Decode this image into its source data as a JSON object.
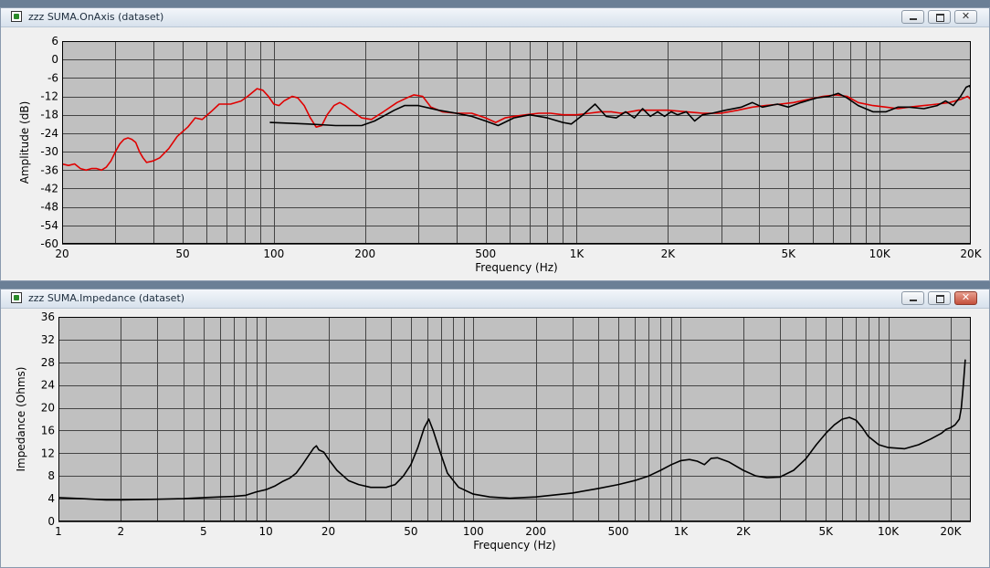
{
  "windows": [
    {
      "title": "zzz SUMA.OnAxis (dataset)",
      "buttons": {
        "minimize": "minimize",
        "maximize": "maximize",
        "close": "close"
      }
    },
    {
      "title": "zzz SUMA.Impedance (dataset)",
      "buttons": {
        "minimize": "minimize",
        "maximize": "maximize",
        "close": "close"
      }
    }
  ],
  "chart_data": [
    {
      "type": "line",
      "xlabel": "Frequency (Hz)",
      "ylabel": "Amplitude (dB)",
      "xscale": "log",
      "xlim": [
        20,
        20000
      ],
      "ylim": [
        -60,
        6
      ],
      "yticks": [
        6,
        0,
        -6,
        -12,
        -18,
        -24,
        -30,
        -36,
        -42,
        -48,
        -54,
        -60
      ],
      "xticks": [
        {
          "v": 20,
          "label": "20"
        },
        {
          "v": 50,
          "label": "50"
        },
        {
          "v": 100,
          "label": "100"
        },
        {
          "v": 200,
          "label": "200"
        },
        {
          "v": 500,
          "label": "500"
        },
        {
          "v": 1000,
          "label": "1K"
        },
        {
          "v": 2000,
          "label": "2K"
        },
        {
          "v": 5000,
          "label": "5K"
        },
        {
          "v": 10000,
          "label": "10K"
        },
        {
          "v": 20000,
          "label": "20K"
        }
      ],
      "grid": true,
      "colors": {
        "black": "#000000",
        "red": "#e00000"
      },
      "series": [
        {
          "color": "red",
          "points": [
            [
              20,
              -34
            ],
            [
              21,
              -34.5
            ],
            [
              22,
              -34
            ],
            [
              23,
              -35.5
            ],
            [
              24,
              -36
            ],
            [
              25,
              -35.5
            ],
            [
              26,
              -35.5
            ],
            [
              27,
              -36
            ],
            [
              28,
              -35
            ],
            [
              29,
              -33
            ],
            [
              30,
              -30
            ],
            [
              31,
              -27.5
            ],
            [
              32,
              -26
            ],
            [
              33,
              -25.5
            ],
            [
              34,
              -26
            ],
            [
              35,
              -27
            ],
            [
              36,
              -30
            ],
            [
              37,
              -32
            ],
            [
              38,
              -33.5
            ],
            [
              40,
              -33
            ],
            [
              42,
              -32
            ],
            [
              45,
              -29
            ],
            [
              48,
              -25
            ],
            [
              52,
              -22
            ],
            [
              55,
              -19
            ],
            [
              58,
              -19.5
            ],
            [
              62,
              -17
            ],
            [
              66,
              -14.5
            ],
            [
              72,
              -14.5
            ],
            [
              78,
              -13.5
            ],
            [
              82,
              -12
            ],
            [
              88,
              -9.5
            ],
            [
              92,
              -10
            ],
            [
              96,
              -12
            ],
            [
              100,
              -14.5
            ],
            [
              104,
              -15
            ],
            [
              108,
              -13.5
            ],
            [
              115,
              -12
            ],
            [
              120,
              -12.5
            ],
            [
              126,
              -15
            ],
            [
              132,
              -19
            ],
            [
              138,
              -22
            ],
            [
              144,
              -21.5
            ],
            [
              150,
              -18
            ],
            [
              158,
              -15
            ],
            [
              165,
              -14
            ],
            [
              172,
              -15
            ],
            [
              180,
              -16.5
            ],
            [
              195,
              -19
            ],
            [
              210,
              -19.5
            ],
            [
              230,
              -17
            ],
            [
              255,
              -14
            ],
            [
              275,
              -12.5
            ],
            [
              290,
              -11.5
            ],
            [
              310,
              -12
            ],
            [
              330,
              -15.5
            ],
            [
              360,
              -17
            ],
            [
              400,
              -17.5
            ],
            [
              450,
              -17.5
            ],
            [
              500,
              -19
            ],
            [
              540,
              -20.5
            ],
            [
              580,
              -19
            ],
            [
              620,
              -18.5
            ],
            [
              680,
              -18
            ],
            [
              750,
              -17.5
            ],
            [
              820,
              -17.5
            ],
            [
              900,
              -18
            ],
            [
              1000,
              -18
            ],
            [
              1100,
              -17.5
            ],
            [
              1200,
              -17
            ],
            [
              1300,
              -17
            ],
            [
              1400,
              -17.5
            ],
            [
              1500,
              -17
            ],
            [
              1600,
              -16.5
            ],
            [
              1800,
              -16.5
            ],
            [
              2000,
              -16.5
            ],
            [
              2300,
              -17
            ],
            [
              2600,
              -17.5
            ],
            [
              3000,
              -17.5
            ],
            [
              3400,
              -16.5
            ],
            [
              3800,
              -15.5
            ],
            [
              4200,
              -15
            ],
            [
              4700,
              -14.5
            ],
            [
              5200,
              -14
            ],
            [
              5800,
              -13
            ],
            [
              6500,
              -12
            ],
            [
              7200,
              -11.5
            ],
            [
              7800,
              -12
            ],
            [
              8500,
              -14
            ],
            [
              9500,
              -15
            ],
            [
              10500,
              -15.5
            ],
            [
              11500,
              -16
            ],
            [
              12500,
              -15.5
            ],
            [
              14000,
              -15
            ],
            [
              15500,
              -14.5
            ],
            [
              17000,
              -14
            ],
            [
              18500,
              -13
            ],
            [
              19500,
              -12
            ],
            [
              20500,
              -14
            ]
          ]
        },
        {
          "color": "black",
          "points": [
            [
              97,
              -20.5
            ],
            [
              130,
              -21
            ],
            [
              160,
              -21.5
            ],
            [
              195,
              -21.5
            ],
            [
              215,
              -20
            ],
            [
              250,
              -16.5
            ],
            [
              270,
              -15
            ],
            [
              300,
              -15
            ],
            [
              350,
              -16.5
            ],
            [
              400,
              -17.5
            ],
            [
              450,
              -18.5
            ],
            [
              500,
              -20
            ],
            [
              550,
              -21.5
            ],
            [
              620,
              -19
            ],
            [
              700,
              -18
            ],
            [
              800,
              -19
            ],
            [
              900,
              -20.5
            ],
            [
              960,
              -21
            ],
            [
              1050,
              -18
            ],
            [
              1150,
              -14.5
            ],
            [
              1250,
              -18.5
            ],
            [
              1350,
              -19
            ],
            [
              1450,
              -17
            ],
            [
              1550,
              -19
            ],
            [
              1650,
              -16
            ],
            [
              1750,
              -18.5
            ],
            [
              1850,
              -17
            ],
            [
              1950,
              -18.5
            ],
            [
              2050,
              -17
            ],
            [
              2150,
              -18
            ],
            [
              2300,
              -17
            ],
            [
              2450,
              -20
            ],
            [
              2600,
              -18
            ],
            [
              2800,
              -17.5
            ],
            [
              3100,
              -16.5
            ],
            [
              3500,
              -15.5
            ],
            [
              3800,
              -14
            ],
            [
              4100,
              -15.5
            ],
            [
              4600,
              -14.5
            ],
            [
              5000,
              -15.5
            ],
            [
              5500,
              -14
            ],
            [
              6200,
              -12.5
            ],
            [
              6800,
              -12
            ],
            [
              7300,
              -11
            ],
            [
              7800,
              -12.5
            ],
            [
              8500,
              -15
            ],
            [
              9500,
              -17
            ],
            [
              10500,
              -17
            ],
            [
              11500,
              -15.5
            ],
            [
              12500,
              -15.5
            ],
            [
              14000,
              -16
            ],
            [
              15500,
              -15
            ],
            [
              16500,
              -13.5
            ],
            [
              17500,
              -15
            ],
            [
              18500,
              -12
            ],
            [
              19300,
              -9
            ],
            [
              19800,
              -8.5
            ],
            [
              20300,
              -11
            ],
            [
              20700,
              -14
            ]
          ]
        }
      ]
    },
    {
      "type": "line",
      "xlabel": "Frequency (Hz)",
      "ylabel": "Impedance (Ohms)",
      "xscale": "log",
      "xlim": [
        1,
        25000
      ],
      "ylim": [
        0,
        36
      ],
      "yticks": [
        36,
        32,
        28,
        24,
        20,
        16,
        12,
        8,
        4,
        0
      ],
      "xticks": [
        {
          "v": 1,
          "label": "1"
        },
        {
          "v": 2,
          "label": "2"
        },
        {
          "v": 5,
          "label": "5"
        },
        {
          "v": 10,
          "label": "10"
        },
        {
          "v": 20,
          "label": "20"
        },
        {
          "v": 50,
          "label": "50"
        },
        {
          "v": 100,
          "label": "100"
        },
        {
          "v": 200,
          "label": "200"
        },
        {
          "v": 500,
          "label": "500"
        },
        {
          "v": 1000,
          "label": "1K"
        },
        {
          "v": 2000,
          "label": "2K"
        },
        {
          "v": 5000,
          "label": "5K"
        },
        {
          "v": 10000,
          "label": "10K"
        },
        {
          "v": 20000,
          "label": "20K"
        }
      ],
      "grid": true,
      "colors": {
        "black": "#000000"
      },
      "series": [
        {
          "color": "black",
          "points": [
            [
              1,
              4.2
            ],
            [
              1.3,
              4
            ],
            [
              1.7,
              3.8
            ],
            [
              2,
              3.8
            ],
            [
              3,
              3.9
            ],
            [
              4,
              4
            ],
            [
              5,
              4.2
            ],
            [
              6,
              4.3
            ],
            [
              7,
              4.4
            ],
            [
              8,
              4.6
            ],
            [
              9,
              5.2
            ],
            [
              10,
              5.6
            ],
            [
              11,
              6.2
            ],
            [
              12,
              7
            ],
            [
              13,
              7.6
            ],
            [
              14,
              8.5
            ],
            [
              15,
              10
            ],
            [
              16,
              11.5
            ],
            [
              17,
              12.9
            ],
            [
              17.5,
              13.3
            ],
            [
              18,
              12.6
            ],
            [
              19,
              12.2
            ],
            [
              20,
              11
            ],
            [
              22,
              9
            ],
            [
              25,
              7.2
            ],
            [
              28,
              6.5
            ],
            [
              32,
              6
            ],
            [
              38,
              6
            ],
            [
              42,
              6.5
            ],
            [
              46,
              8
            ],
            [
              50,
              10
            ],
            [
              54,
              13
            ],
            [
              58,
              16.5
            ],
            [
              61,
              18
            ],
            [
              64,
              16
            ],
            [
              68,
              13
            ],
            [
              75,
              8.5
            ],
            [
              85,
              6
            ],
            [
              100,
              4.8
            ],
            [
              120,
              4.3
            ],
            [
              150,
              4.1
            ],
            [
              200,
              4.3
            ],
            [
              300,
              5
            ],
            [
              400,
              5.8
            ],
            [
              500,
              6.5
            ],
            [
              600,
              7.2
            ],
            [
              700,
              8
            ],
            [
              800,
              9
            ],
            [
              900,
              10
            ],
            [
              1000,
              10.7
            ],
            [
              1100,
              10.9
            ],
            [
              1200,
              10.6
            ],
            [
              1300,
              10
            ],
            [
              1400,
              11.1
            ],
            [
              1500,
              11.2
            ],
            [
              1700,
              10.5
            ],
            [
              2000,
              9
            ],
            [
              2300,
              8
            ],
            [
              2600,
              7.7
            ],
            [
              3000,
              7.8
            ],
            [
              3500,
              9
            ],
            [
              4000,
              11
            ],
            [
              4500,
              13.5
            ],
            [
              5000,
              15.5
            ],
            [
              5500,
              17
            ],
            [
              6000,
              18
            ],
            [
              6500,
              18.3
            ],
            [
              7000,
              17.8
            ],
            [
              7500,
              16.5
            ],
            [
              8000,
              15
            ],
            [
              9000,
              13.5
            ],
            [
              10000,
              13
            ],
            [
              12000,
              12.8
            ],
            [
              14000,
              13.5
            ],
            [
              16000,
              14.5
            ],
            [
              18000,
              15.5
            ],
            [
              19000,
              16.2
            ],
            [
              20000,
              16.5
            ],
            [
              21000,
              17
            ],
            [
              22000,
              18
            ],
            [
              22500,
              20
            ],
            [
              23000,
              24
            ],
            [
              23500,
              28.5
            ]
          ]
        }
      ]
    }
  ]
}
